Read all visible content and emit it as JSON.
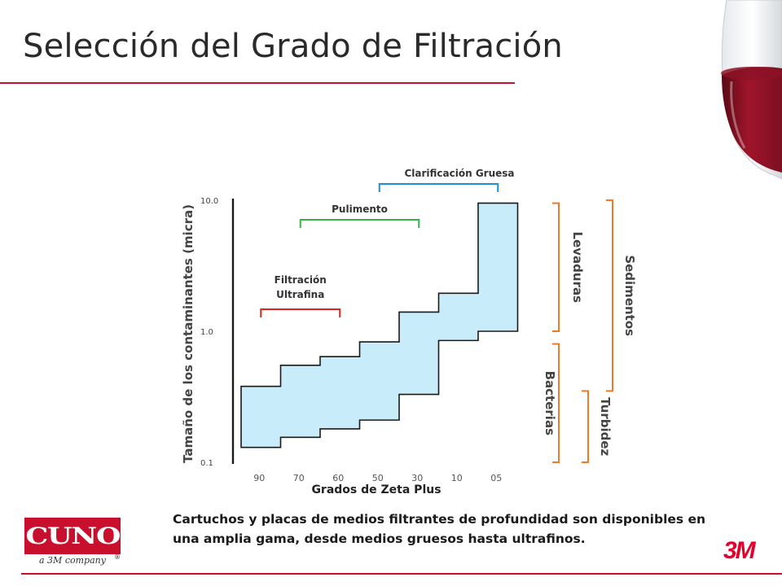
{
  "slide": {
    "title": "Selección del Grado de Filtración",
    "caption": "Cartuchos y placas de medios filtrantes de profundidad son disponibles en una amplia gama, desde medios gruesos hasta ultrafinos.",
    "logo_left_word": "CUNO",
    "logo_left_sub": "a 3M company",
    "logo_left_reg": "®",
    "logo_right": "3M",
    "accent_color": "#c8102e"
  },
  "chart_data": {
    "type": "area",
    "title": "",
    "xlabel": "Grados de Zeta Plus",
    "ylabel": "Tamaño de los contaminantes (micra)",
    "y_scale": "log",
    "ylim": [
      0.1,
      10.0
    ],
    "y_ticks": [
      "10.0",
      "1.0",
      "0.1"
    ],
    "categories": [
      "90",
      "70",
      "60",
      "50",
      "30",
      "10",
      "05"
    ],
    "series": [
      {
        "values_low": [
          0.13,
          0.155,
          0.18,
          0.21,
          0.33,
          0.85,
          1.0
        ],
        "values_high": [
          0.38,
          0.55,
          0.64,
          0.83,
          1.4,
          1.95,
          9.5
        ]
      }
    ],
    "fill_color": "#c8ecfa",
    "ranges": [
      {
        "label": "Filtración Ultrafina",
        "color": "#e0231f",
        "from": "90",
        "to": "60"
      },
      {
        "label": "Pulimento",
        "color": "#36b34a",
        "from": "70",
        "to": "30"
      },
      {
        "label": "Clarificación Gruesa",
        "color": "#1b8fd8",
        "from": "50",
        "to": "05"
      }
    ],
    "contaminants": [
      {
        "label": "Levaduras",
        "color": "#f07a2a",
        "from": 1.0,
        "to": 9.5
      },
      {
        "label": "Bacterias",
        "color": "#f07a2a",
        "from": 0.1,
        "to": 0.8
      },
      {
        "label": "Sedimentos",
        "color": "#f07a2a",
        "from": 0.35,
        "to": 10.0
      },
      {
        "label": "Turbidez",
        "color": "#f07a2a",
        "from": 0.1,
        "to": 0.35
      }
    ]
  }
}
